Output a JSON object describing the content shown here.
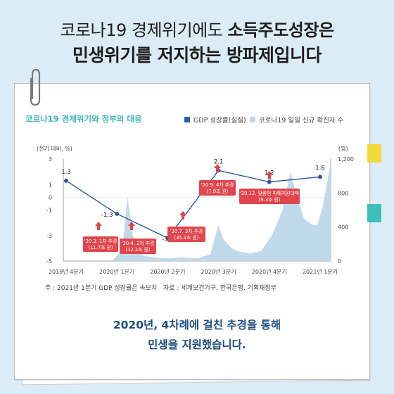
{
  "headline": {
    "line1_light": "코로나19  경제위기에도 ",
    "line1_bold": "소득주도성장은",
    "line2": "민생위기를 저지하는 방파제입니다"
  },
  "colors": {
    "background": "#dcecf7",
    "gdp_line": "#2a5ca8",
    "covid_area": "#b9d6ea",
    "callout": "#e0474c",
    "title_teal": "#3fb7bd",
    "tab_yellow": "#f3d83a",
    "tab_teal": "#3bbfb7"
  },
  "icons": {
    "clip": "paperclip-icon"
  },
  "chart_data": {
    "type": "line",
    "title": "코로나19 경제위기와 정부의 대응",
    "legend_position": "top-right",
    "series": [
      {
        "name": "GDP 성장률(실질)",
        "kind": "line",
        "categories": [
          "2019년 4분기",
          "2020년 1분기",
          "2020년 2분기",
          "2020년 3분기",
          "2020년 4분기",
          "2021년 1분기"
        ],
        "values": [
          1.3,
          -1.3,
          -3.2,
          2.1,
          1.2,
          1.6
        ],
        "value_labels": [
          "1.3",
          "-1.3",
          "-3.2",
          "2.1",
          "1.2",
          "1.6"
        ]
      },
      {
        "name": "코로나19 일일 신규 확진자 수",
        "kind": "area"
      }
    ],
    "left_axis": {
      "label": "(전기 대비, %)",
      "ticks": [
        "3",
        "1",
        "0",
        "-1",
        "-3",
        "-5"
      ],
      "ylim": [
        -5,
        3
      ]
    },
    "right_axis": {
      "label": "(명)",
      "ticks": [
        "1,200",
        "800",
        "400",
        "0"
      ],
      "ylim": [
        0,
        1200
      ]
    },
    "x_ticks": [
      "2019년 4분기",
      "2020년 1분기",
      "2020년 2분기",
      "2020년 3분기",
      "2020년 4분기",
      "2021년 1분기"
    ],
    "annotations": [
      {
        "line1": "'20.3. 1차 추경",
        "line2": "(11.7조 원)"
      },
      {
        "line1": "'20.4. 2차 추경",
        "line2": "(12.2조 원)"
      },
      {
        "line1": "'20.7. 3차 추경",
        "line2": "(35.1조 원)"
      },
      {
        "line1": "'20.9. 4차 추경",
        "line2": "(7.8조 원)"
      },
      {
        "line1": "'20.12. 맞춤형 피해지원대책",
        "line2": "(9.3조 원)"
      }
    ]
  },
  "notes": {
    "left": "주 : 2021년 1분기 GDP 성장률은 속보치",
    "right": "자료 : 세계보건기구, 한국은행, 기획재정부"
  },
  "footer": {
    "line1": "2020년, 4차례에 걸친 추경을 통해",
    "line2": "민생을 지원했습니다."
  }
}
